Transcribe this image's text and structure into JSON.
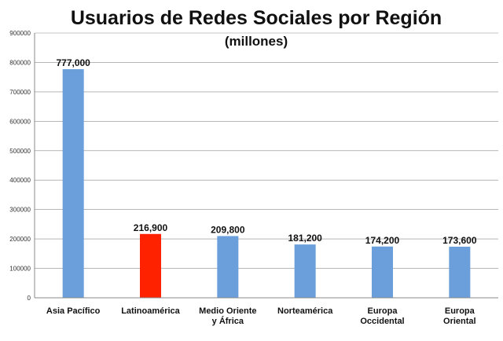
{
  "chart_data": {
    "type": "bar",
    "title": "Usuarios de Redes Sociales por Región",
    "subtitle": "(millones)",
    "xlabel": "",
    "ylabel": "",
    "ylim": [
      0,
      900000
    ],
    "yticks": [
      0,
      100000,
      200000,
      300000,
      400000,
      500000,
      600000,
      700000,
      800000,
      900000
    ],
    "grid": true,
    "legend": "none",
    "categories": [
      [
        "Asia Pacífico"
      ],
      [
        "Latinoamérica"
      ],
      [
        "Medio Oriente",
        "y África"
      ],
      [
        "Norteamérica"
      ],
      [
        "Europa",
        "Occidental"
      ],
      [
        "Europa",
        "Oriental"
      ]
    ],
    "values": [
      777000,
      216900,
      209800,
      181200,
      174200,
      173600
    ],
    "data_labels": [
      "777,000",
      "216,900",
      "209,800",
      "181,200",
      "174,200",
      "173,600"
    ],
    "colors": [
      "#6a9fdc",
      "#ff2200",
      "#6a9fdc",
      "#6a9fdc",
      "#6a9fdc",
      "#6a9fdc"
    ]
  }
}
